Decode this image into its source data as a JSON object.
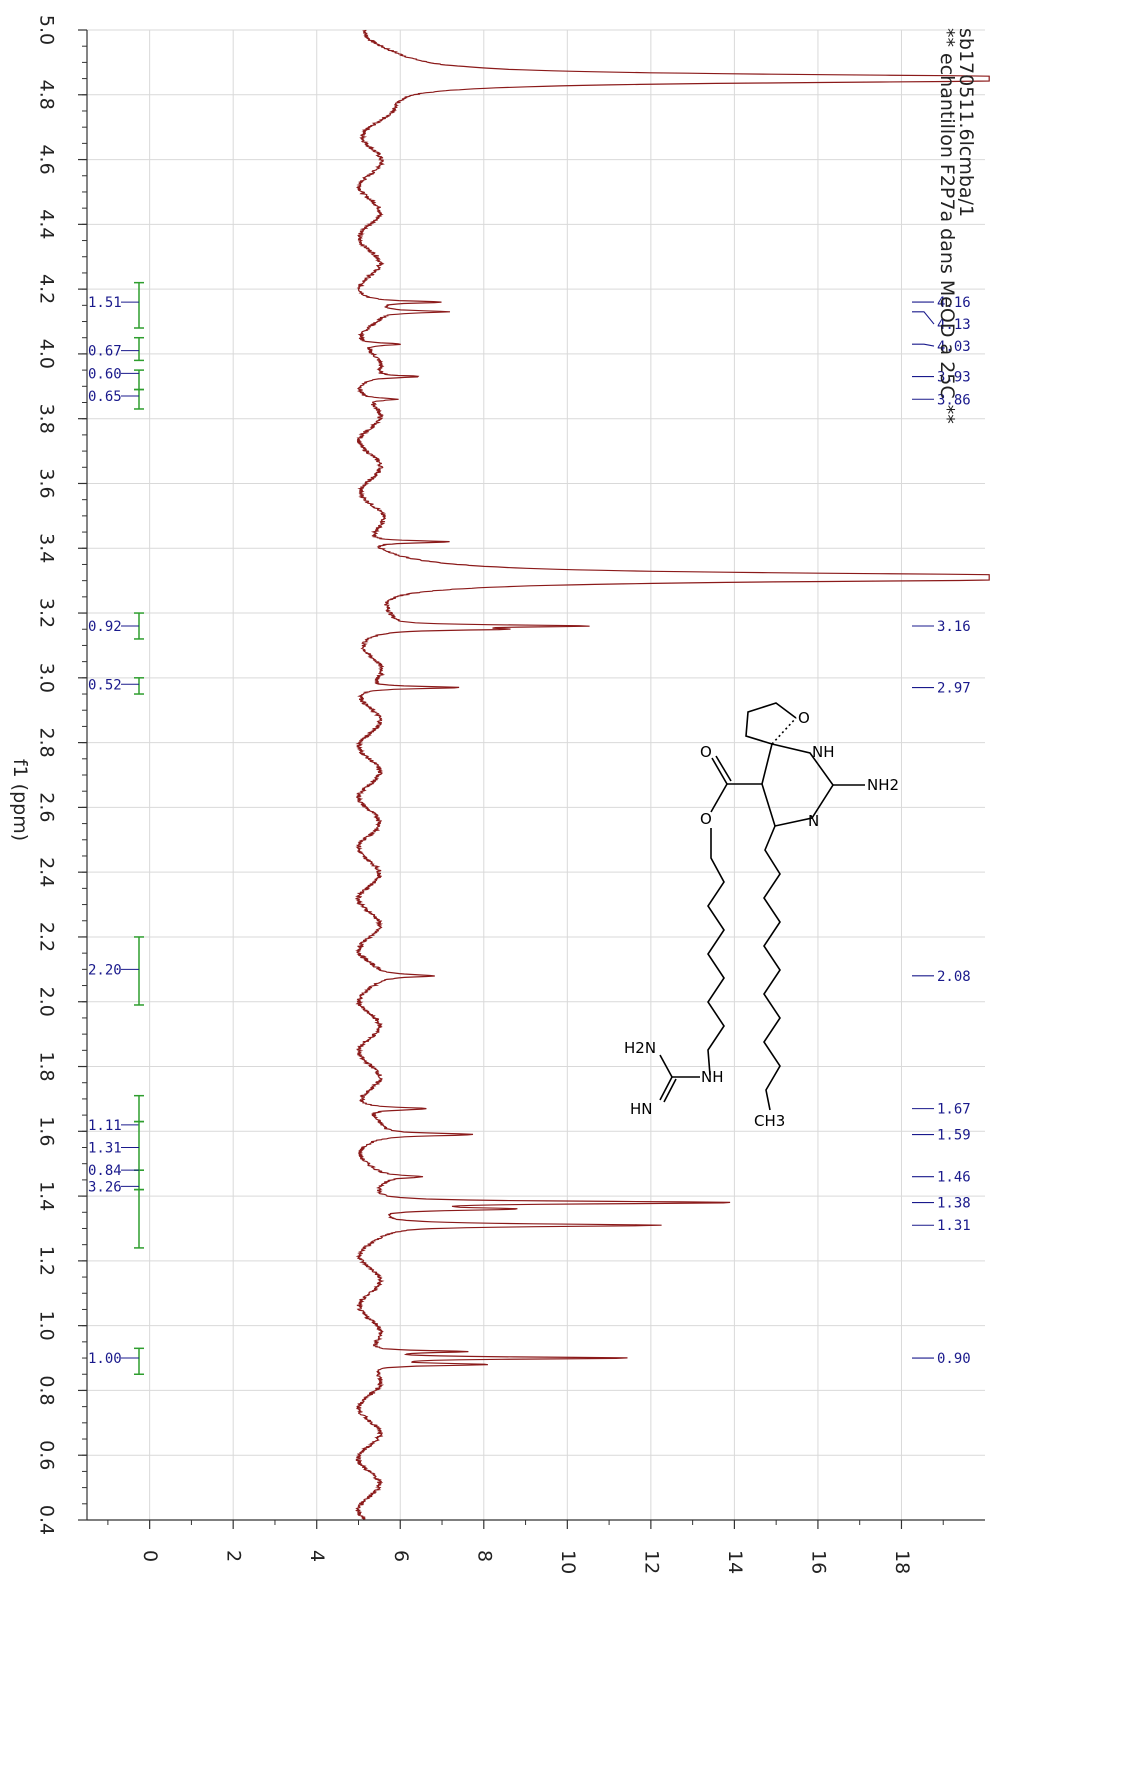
{
  "chart_data": {
    "type": "line",
    "title_lines": [
      "sb170511.6lcmba/1",
      "** echantillon F2P7a dans MeOD a 25C **"
    ],
    "xlabel": "f1 (ppm)",
    "ylabel": "",
    "xlim": [
      5.0,
      0.4
    ],
    "ylim": [
      -1.5,
      20.0
    ],
    "x_ticks": [
      "5.0",
      "4.8",
      "4.6",
      "4.4",
      "4.2",
      "4.0",
      "3.8",
      "3.6",
      "3.4",
      "3.2",
      "3.0",
      "2.8",
      "2.6",
      "2.4",
      "2.2",
      "2.0",
      "1.8",
      "1.6",
      "1.4",
      "1.2",
      "1.0",
      "0.8",
      "0.6",
      "0.4"
    ],
    "y_ticks": [
      "0",
      "2",
      "4",
      "6",
      "8",
      "10",
      "12",
      "14",
      "16",
      "18"
    ],
    "grid": true,
    "colors": {
      "spectrum": "#8b1a1a",
      "integral": "#2e9e2e",
      "label": "#1a1a8c",
      "grid": "#d9d9d9",
      "axis": "#333333"
    },
    "baseline": 5.25,
    "peaks": [
      {
        "ppm": 4.85,
        "height": 22.0,
        "width": 0.012
      },
      {
        "ppm": 4.16,
        "height": 1.7,
        "width": 0.004
      },
      {
        "ppm": 4.13,
        "height": 1.6,
        "width": 0.004
      },
      {
        "ppm": 4.03,
        "height": 1.0,
        "width": 0.004
      },
      {
        "ppm": 3.93,
        "height": 1.2,
        "width": 0.004
      },
      {
        "ppm": 3.86,
        "height": 0.8,
        "width": 0.004
      },
      {
        "ppm": 3.42,
        "height": 1.9,
        "width": 0.004
      },
      {
        "ppm": 3.31,
        "height": 23.0,
        "width": 0.012
      },
      {
        "ppm": 3.16,
        "height": 4.7,
        "width": 0.004
      },
      {
        "ppm": 3.15,
        "height": 2.5,
        "width": 0.004
      },
      {
        "ppm": 2.97,
        "height": 2.3,
        "width": 0.004
      },
      {
        "ppm": 2.08,
        "height": 1.3,
        "width": 0.005
      },
      {
        "ppm": 1.67,
        "height": 1.6,
        "width": 0.005
      },
      {
        "ppm": 1.59,
        "height": 2.3,
        "width": 0.005
      },
      {
        "ppm": 1.46,
        "height": 1.0,
        "width": 0.005
      },
      {
        "ppm": 1.38,
        "height": 8.8,
        "width": 0.005
      },
      {
        "ppm": 1.36,
        "height": 3.2,
        "width": 0.005
      },
      {
        "ppm": 1.31,
        "height": 6.7,
        "width": 0.005
      },
      {
        "ppm": 0.92,
        "height": 2.3,
        "width": 0.004
      },
      {
        "ppm": 0.9,
        "height": 6.3,
        "width": 0.004
      },
      {
        "ppm": 0.88,
        "height": 2.8,
        "width": 0.004
      }
    ],
    "peak_labels": [
      "4.16",
      "4.13",
      "4.03",
      "3.93",
      "3.86",
      "3.16",
      "2.97",
      "2.08",
      "1.67",
      "1.59",
      "1.46",
      "1.38",
      "1.31",
      "0.90"
    ],
    "integrals": [
      {
        "label": "1.51",
        "from": 4.22,
        "to": 4.08,
        "label_ppm": 4.16
      },
      {
        "label": "0.67",
        "from": 4.05,
        "to": 3.98,
        "label_ppm": 4.01
      },
      {
        "label": "0.60",
        "from": 3.95,
        "to": 3.89,
        "label_ppm": 3.94
      },
      {
        "label": "0.65",
        "from": 3.89,
        "to": 3.83,
        "label_ppm": 3.87
      },
      {
        "label": "0.92",
        "from": 3.2,
        "to": 3.12,
        "label_ppm": 3.16
      },
      {
        "label": "0.52",
        "from": 3.0,
        "to": 2.95,
        "label_ppm": 2.98
      },
      {
        "label": "2.20",
        "from": 2.2,
        "to": 1.99,
        "label_ppm": 2.1
      },
      {
        "label": "1.11",
        "from": 1.71,
        "to": 1.63,
        "label_ppm": 1.62
      },
      {
        "label": "1.31",
        "from": 1.63,
        "to": 1.48,
        "label_ppm": 1.55
      },
      {
        "label": "0.84",
        "from": 1.48,
        "to": 1.42,
        "label_ppm": 1.48
      },
      {
        "label": "3.26",
        "from": 1.42,
        "to": 1.24,
        "label_ppm": 1.43
      },
      {
        "label": "1.00",
        "from": 0.93,
        "to": 0.85,
        "label_ppm": 0.9
      }
    ]
  },
  "structure": {
    "atoms": [
      "O",
      "O",
      "O",
      "NH",
      "NH2",
      "N",
      "H2N",
      "NH",
      "HN",
      "CH3"
    ]
  }
}
